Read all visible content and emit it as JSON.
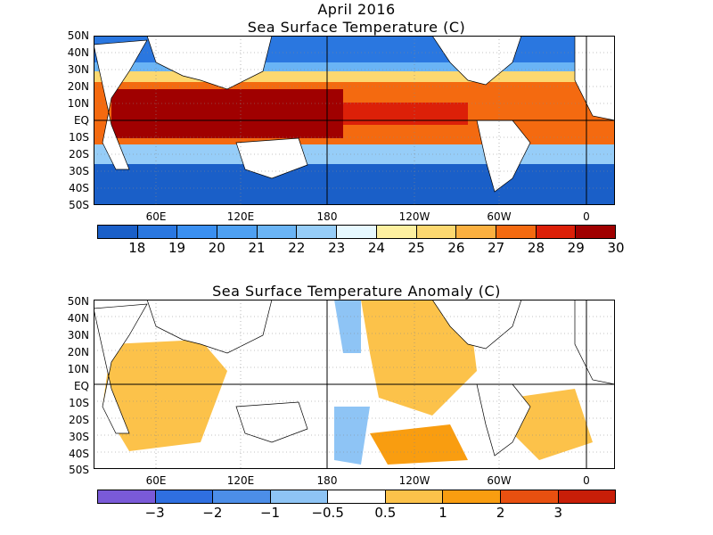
{
  "date_title": "April 2016",
  "latitudes": [
    "50N",
    "40N",
    "30N",
    "20N",
    "10N",
    "EQ",
    "10S",
    "20S",
    "30S",
    "40S",
    "50S"
  ],
  "longitudes": [
    "60E",
    "120E",
    "180",
    "120W",
    "60W",
    "0"
  ],
  "top": {
    "title": "Sea Surface Temperature (C)",
    "colorbar": {
      "colors": [
        "#1a5fc8",
        "#2a77e0",
        "#3a8ff0",
        "#4ea0f2",
        "#6ab4f5",
        "#96cdf8",
        "#e6f8ff",
        "#fdf0a0",
        "#fcd870",
        "#fbb040",
        "#f46a10",
        "#dc2008",
        "#a00000"
      ],
      "labels": [
        "18",
        "19",
        "20",
        "21",
        "22",
        "23",
        "24",
        "25",
        "26",
        "27",
        "28",
        "29",
        "30"
      ]
    }
  },
  "bottom": {
    "title": "Sea Surface Temperature Anomaly (C)",
    "colorbar": {
      "colors": [
        "#7a5ad8",
        "#2f6fe0",
        "#4c8ee8",
        "#8ec4f5",
        "#ffffff",
        "#fcc24a",
        "#f99d10",
        "#e85010",
        "#c81e08"
      ],
      "labels": [
        "−3",
        "−2",
        "−1",
        "−0.5",
        "0.5",
        "1",
        "2",
        "3"
      ]
    }
  }
}
